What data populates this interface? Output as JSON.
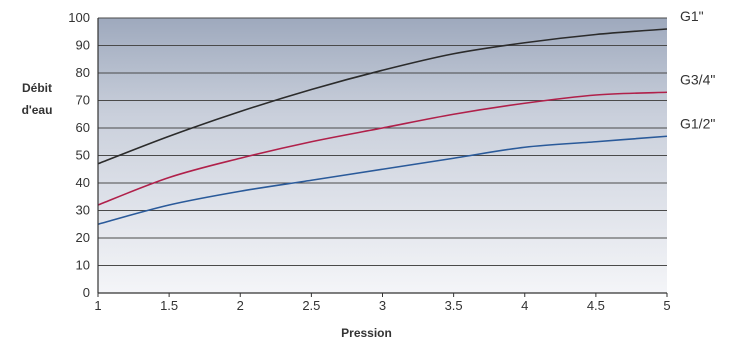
{
  "chart_data": {
    "type": "line",
    "title": "",
    "xlabel": "Pression",
    "ylabel_lines": [
      "Débit",
      "d'eau"
    ],
    "xlim": [
      1,
      5
    ],
    "ylim": [
      0,
      100
    ],
    "x_ticks": [
      "1",
      "1.5",
      "2",
      "2.5",
      "3",
      "3.5",
      "4",
      "4.5",
      "5"
    ],
    "y_ticks": [
      "0",
      "10",
      "20",
      "30",
      "40",
      "50",
      "60",
      "70",
      "80",
      "90",
      "100"
    ],
    "grid": true,
    "legend": "right end labels",
    "series": [
      {
        "name": "G1\"",
        "color": "#2b2b2b",
        "x": [
          1,
          1.5,
          2,
          2.5,
          3,
          3.5,
          4,
          4.5,
          5
        ],
        "y": [
          47,
          57,
          66,
          74,
          81,
          87,
          91,
          94,
          96
        ]
      },
      {
        "name": "G3/4\"",
        "color": "#b0204a",
        "x": [
          1,
          1.5,
          2,
          2.5,
          3,
          3.5,
          4,
          4.5,
          5
        ],
        "y": [
          32,
          42,
          49,
          55,
          60,
          65,
          69,
          72,
          73
        ]
      },
      {
        "name": "G1/2\"",
        "color": "#2a5a9a",
        "x": [
          1,
          1.5,
          2,
          2.5,
          3,
          3.5,
          4,
          4.5,
          5
        ],
        "y": [
          25,
          32,
          37,
          41,
          45,
          49,
          53,
          55,
          57
        ]
      }
    ]
  }
}
